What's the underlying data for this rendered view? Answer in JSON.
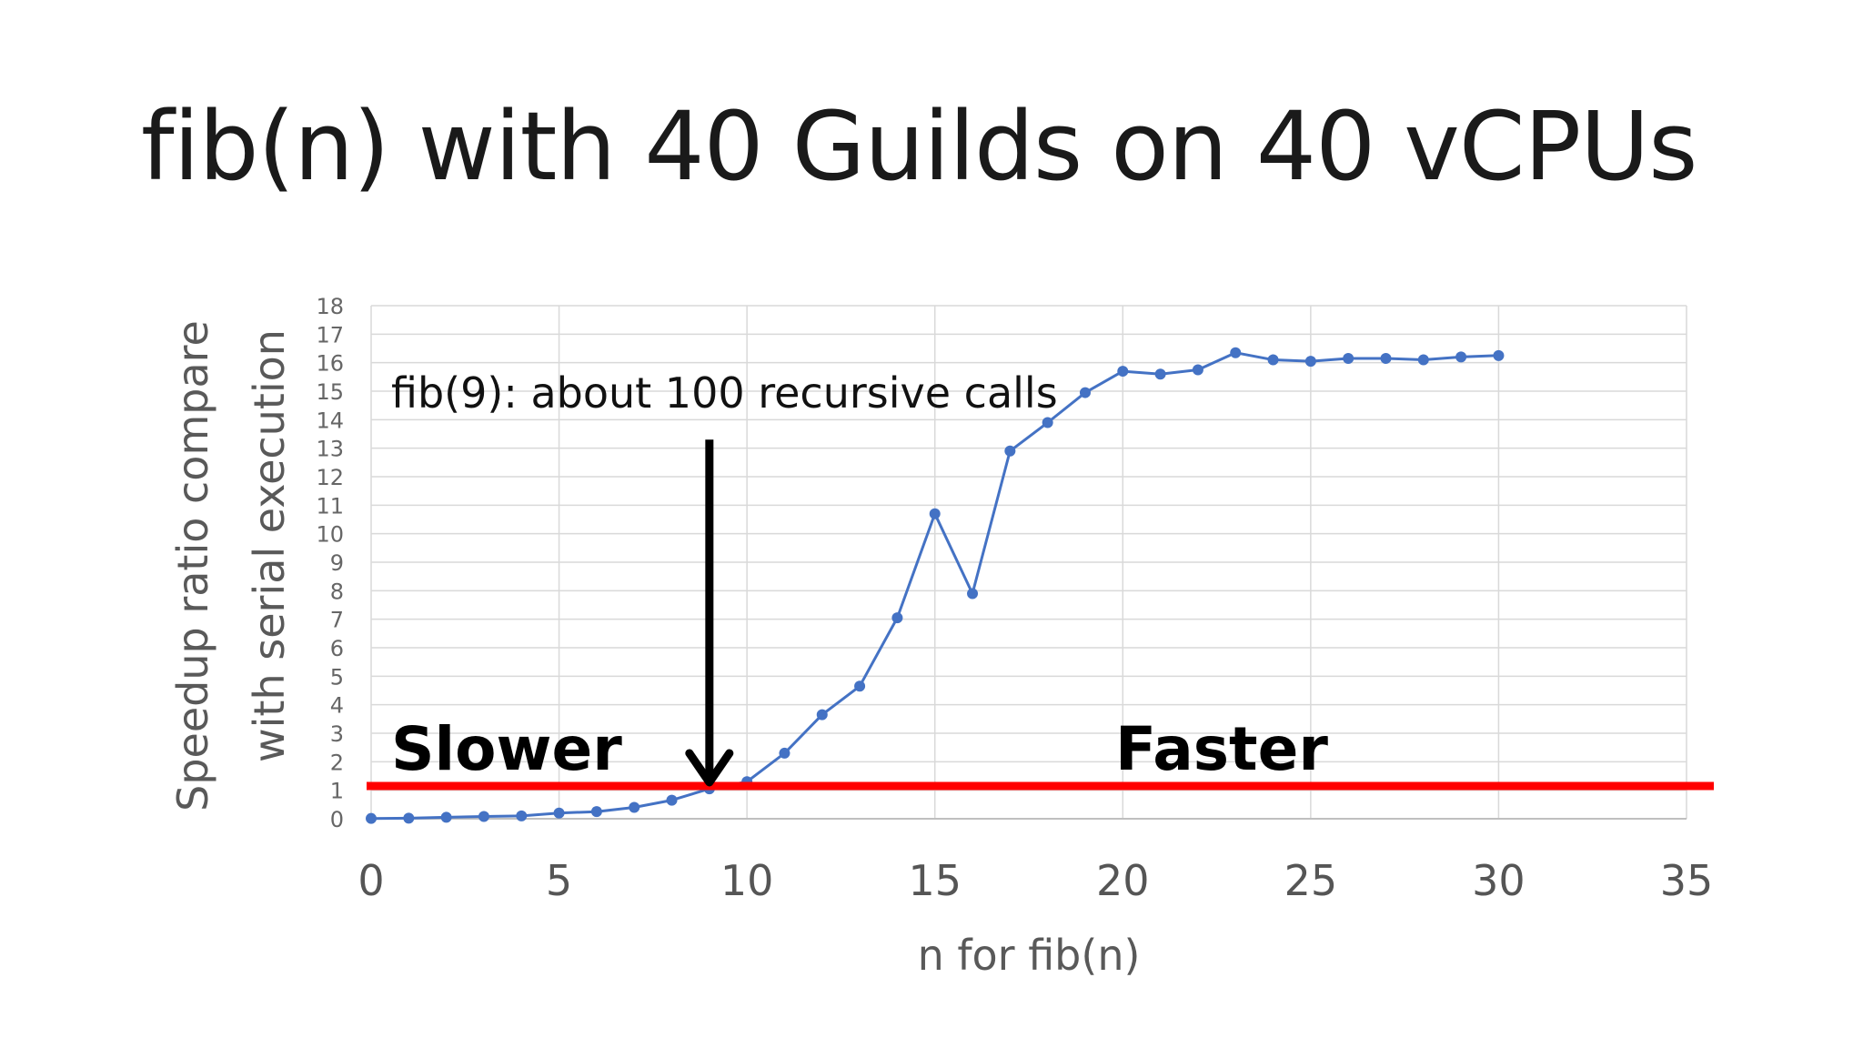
{
  "slide": {
    "title": "fib(n) with 40 Guilds on 40 vCPUs"
  },
  "colors": {
    "series": "#4472C4",
    "threshold_line": "#FF0000",
    "arrow": "#000000",
    "grid": "#D9D9D9"
  },
  "chart_data": {
    "type": "line",
    "title": "",
    "xlabel": "n for fib(n)",
    "ylabel": "Speedup ratio compare with serial execution",
    "ylabel_lines": [
      "Speedup ratio compare",
      "with serial execution"
    ],
    "xlim": [
      0,
      35
    ],
    "ylim": [
      0,
      18
    ],
    "x_ticks": [
      0,
      5,
      10,
      15,
      20,
      25,
      30,
      35
    ],
    "y_ticks": [
      0,
      1,
      2,
      3,
      4,
      5,
      6,
      7,
      8,
      9,
      10,
      11,
      12,
      13,
      14,
      15,
      16,
      17,
      18
    ],
    "grid": true,
    "legend": "none",
    "series": [
      {
        "x": [
          0,
          1,
          2,
          3,
          4,
          5,
          6,
          7,
          8,
          9,
          10,
          11,
          12,
          13,
          14,
          15,
          16,
          17,
          18,
          19,
          20,
          21,
          22,
          23,
          24,
          25,
          26,
          27,
          28,
          29,
          30
        ],
        "values": [
          0.01,
          0.02,
          0.05,
          0.08,
          0.1,
          0.2,
          0.25,
          0.4,
          0.65,
          1.05,
          1.3,
          2.3,
          3.65,
          4.65,
          7.05,
          10.7,
          7.9,
          12.9,
          13.9,
          14.95,
          15.7,
          15.6,
          15.75,
          16.35,
          16.1,
          16.05,
          16.15,
          16.15,
          16.1,
          16.2,
          16.25
        ]
      }
    ],
    "threshold": {
      "y": 1.15
    },
    "annotations": {
      "arrow_label": "fib(9): about 100 recursive calls",
      "arrow_x": 9,
      "arrow_top_y": 13.3,
      "arrow_tip_y": 1.15,
      "slower_label": "Slower",
      "faster_label": "Faster"
    }
  }
}
